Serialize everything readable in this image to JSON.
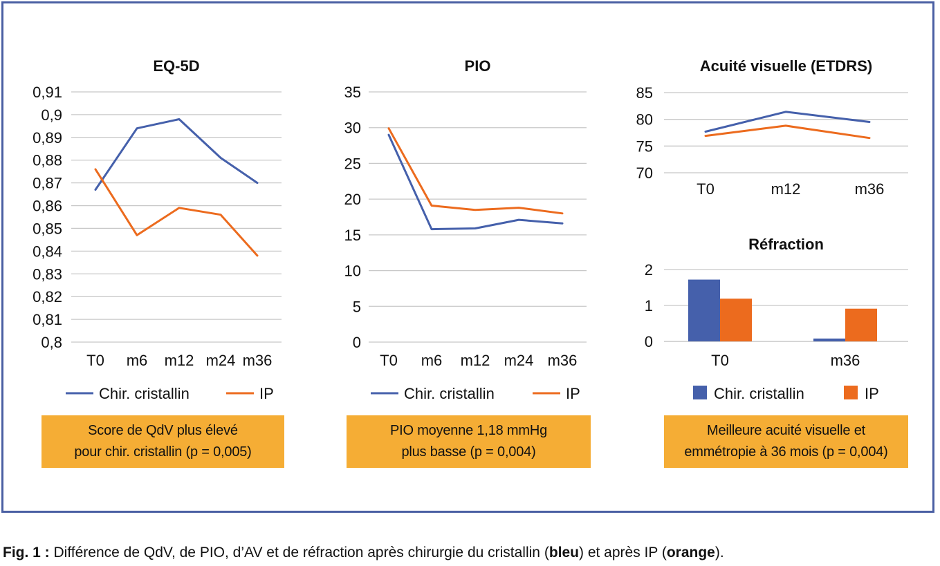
{
  "colors": {
    "blue": "#4560ab",
    "orange": "#ec6b1e",
    "grid": "#c8c8c8",
    "frame": "#4a5fa3",
    "callout": "#f5ad35"
  },
  "legend": {
    "series_a": "Chir. cristallin",
    "series_b": "IP"
  },
  "callouts": {
    "eq5d": [
      "Score de QdV plus élevé",
      "pour chir. cristallin (p = 0,005)"
    ],
    "pio": [
      "PIO moyenne 1,18 mmHg",
      "plus basse (p = 0,004)"
    ],
    "acuity": [
      "Meilleure acuité visuelle et",
      "emmétropie à 36 mois (p = 0,004)"
    ]
  },
  "caption": {
    "label": "Fig. 1 :",
    "text_1": " Différence de QdV, de PIO, d’AV et de réfraction après chirurgie du cristallin (",
    "bold_1": "bleu",
    "text_2": ") et après IP (",
    "bold_2": "orange",
    "text_3": ")."
  },
  "chart_data": [
    {
      "id": "eq5d",
      "type": "line",
      "title": "EQ-5D",
      "categories": [
        "T0",
        "m6",
        "m12",
        "m24",
        "m36"
      ],
      "ylim": [
        0.8,
        0.91
      ],
      "yticks": [
        0.8,
        0.81,
        0.82,
        0.83,
        0.84,
        0.85,
        0.86,
        0.87,
        0.88,
        0.89,
        0.9,
        0.91
      ],
      "ytick_labels": [
        "0,8",
        "0,81",
        "0,82",
        "0,83",
        "0,84",
        "0,85",
        "0,86",
        "0,87",
        "0,88",
        "0,89",
        "0,9",
        "0,91"
      ],
      "grid": true,
      "legend_position": "bottom",
      "series": [
        {
          "name": "Chir. cristallin",
          "color": "#4560ab",
          "values": [
            0.867,
            0.894,
            0.898,
            0.881,
            0.87
          ]
        },
        {
          "name": "IP",
          "color": "#ec6b1e",
          "values": [
            0.876,
            0.847,
            0.859,
            0.856,
            0.838
          ]
        }
      ]
    },
    {
      "id": "pio",
      "type": "line",
      "title": "PIO",
      "categories": [
        "T0",
        "m6",
        "m12",
        "m24",
        "m36"
      ],
      "ylim": [
        0,
        35
      ],
      "yticks": [
        0,
        5,
        10,
        15,
        20,
        25,
        30,
        35
      ],
      "ytick_labels": [
        "0",
        "5",
        "10",
        "15",
        "20",
        "25",
        "30",
        "35"
      ],
      "grid": true,
      "legend_position": "bottom",
      "series": [
        {
          "name": "Chir. cristallin",
          "color": "#4560ab",
          "values": [
            29.0,
            15.8,
            15.9,
            17.1,
            16.6
          ]
        },
        {
          "name": "IP",
          "color": "#ec6b1e",
          "values": [
            29.9,
            19.1,
            18.5,
            18.8,
            18.0
          ]
        }
      ]
    },
    {
      "id": "acuity",
      "type": "line",
      "title": "Acuité visuelle (ETDRS)",
      "categories": [
        "T0",
        "m12",
        "m36"
      ],
      "ylim": [
        70,
        85
      ],
      "yticks": [
        70,
        75,
        80,
        85
      ],
      "ytick_labels": [
        "70",
        "75",
        "80",
        "85"
      ],
      "grid": true,
      "series": [
        {
          "name": "Chir. cristallin",
          "color": "#4560ab",
          "values": [
            77.7,
            81.4,
            79.5
          ]
        },
        {
          "name": "IP",
          "color": "#ec6b1e",
          "values": [
            76.9,
            78.8,
            76.5
          ]
        }
      ]
    },
    {
      "id": "refraction",
      "type": "bar",
      "title": "Réfraction",
      "categories": [
        "T0",
        "m36"
      ],
      "ylim": [
        0,
        2
      ],
      "yticks": [
        0,
        1,
        2
      ],
      "ytick_labels": [
        "0",
        "1",
        "2"
      ],
      "grid": true,
      "legend_position": "bottom",
      "series": [
        {
          "name": "Chir. cristallin",
          "color": "#4560ab",
          "values": [
            1.72,
            0.08
          ]
        },
        {
          "name": "IP",
          "color": "#ec6b1e",
          "values": [
            1.19,
            0.91
          ]
        }
      ]
    }
  ]
}
